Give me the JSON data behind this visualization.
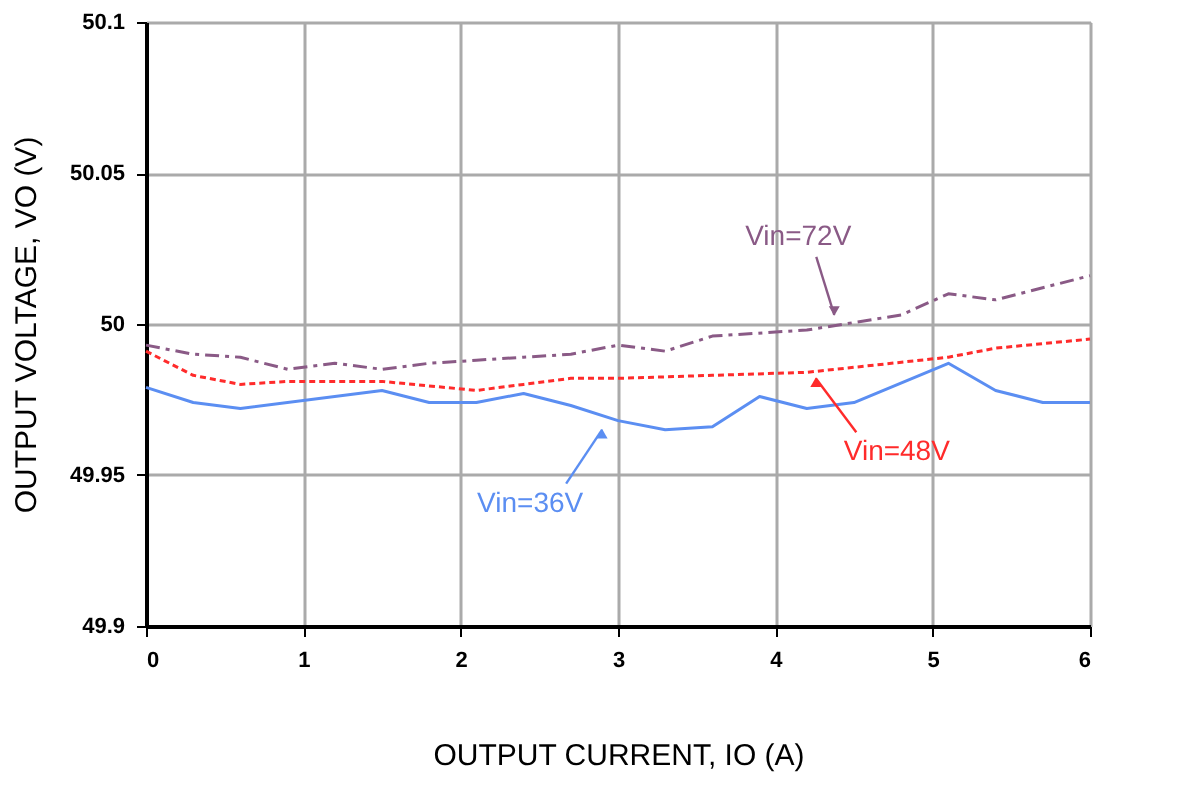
{
  "chart_data": {
    "type": "line",
    "xlabel": "OUTPUT CURRENT, IO (A)",
    "ylabel": "OUTPUT VOLTAGE, VO (V)",
    "xlim": [
      0,
      6
    ],
    "xticks": [
      0,
      1,
      2,
      3,
      4,
      5,
      6
    ],
    "ylim": [
      49.9,
      50.1
    ],
    "yticks": [
      49.9,
      49.95,
      50,
      50.05,
      50.1
    ],
    "grid": true,
    "marker": "none",
    "series": [
      {
        "color": "#5b8ef2",
        "line_style": "solid",
        "x": [
          0,
          0.3,
          0.6,
          1.5,
          1.8,
          2.1,
          2.4,
          2.7,
          3,
          3.3,
          3.6,
          3.9,
          4.2,
          4.5,
          5.1,
          5.4,
          5.7,
          6
        ],
        "values": [
          49.979,
          49.974,
          49.972,
          49.978,
          49.974,
          49.974,
          49.977,
          49.973,
          49.968,
          49.965,
          49.966,
          49.976,
          49.972,
          49.974,
          49.987,
          49.978,
          49.974,
          49.974
        ]
      },
      {
        "color": "#ff2b2b",
        "line_style": "dotted",
        "x": [
          0,
          0.3,
          0.6,
          0.9,
          1.5,
          2.1,
          2.4,
          2.7,
          3,
          3.6,
          4.2,
          5.1,
          5.4,
          6
        ],
        "values": [
          49.991,
          49.983,
          49.98,
          49.981,
          49.981,
          49.978,
          49.98,
          49.982,
          49.982,
          49.983,
          49.984,
          49.989,
          49.992,
          49.995
        ]
      },
      {
        "color": "#8a5a86",
        "line_style": "dashed",
        "x": [
          0,
          0.3,
          0.6,
          0.9,
          1.2,
          1.5,
          1.8,
          2.1,
          2.4,
          2.7,
          3,
          3.3,
          3.6,
          4.2,
          4.8,
          5.1,
          5.4,
          6
        ],
        "values": [
          49.993,
          49.99,
          49.989,
          49.985,
          49.987,
          49.985,
          49.987,
          49.988,
          49.989,
          49.99,
          49.993,
          49.991,
          49.996,
          49.998,
          50.003,
          50.01,
          50.008,
          50.016
        ]
      }
    ],
    "annotations": [
      {
        "text": "Vin=36V",
        "x": 2.95,
        "y": 49.967
      },
      {
        "text": "Vin=48V",
        "x": 4.2,
        "y": 49.984
      },
      {
        "text": "Vin=72V",
        "x": 4.4,
        "y": 50.001
      }
    ]
  }
}
